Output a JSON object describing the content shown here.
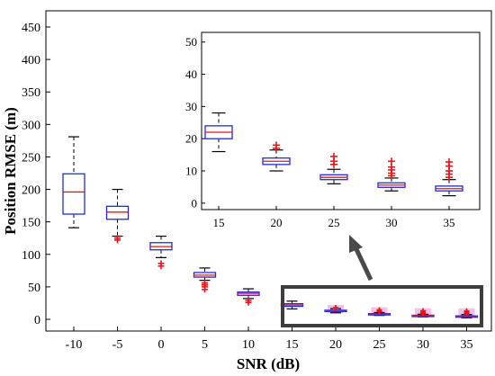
{
  "chart_data": {
    "type": "box",
    "xlabel": "SNR (dB)",
    "ylabel": "Position RMSE (m)",
    "categories": [
      "-10",
      "-5",
      "0",
      "5",
      "10",
      "15",
      "20",
      "25",
      "30",
      "35"
    ],
    "ylim": [
      0,
      450
    ],
    "yticks": [
      0,
      50,
      100,
      150,
      200,
      250,
      300,
      350,
      400,
      450
    ],
    "grid": false,
    "boxes": [
      {
        "snr": "-10",
        "whisker_low": 141,
        "q1": 162,
        "median": 196,
        "q3": 224,
        "whisker_high": 281,
        "outliers": []
      },
      {
        "snr": "-5",
        "whisker_low": 128,
        "q1": 154,
        "median": 165,
        "q3": 174,
        "whisker_high": 200,
        "outliers": [
          122,
          125
        ]
      },
      {
        "snr": "0",
        "whisker_low": 95,
        "q1": 107,
        "median": 112,
        "q3": 118,
        "whisker_high": 128,
        "outliers": [
          82,
          86
        ]
      },
      {
        "snr": "5",
        "whisker_low": 60,
        "q1": 65,
        "median": 68,
        "q3": 72,
        "whisker_high": 79,
        "outliers": [
          46,
          50,
          53,
          56
        ]
      },
      {
        "snr": "10",
        "whisker_low": 32,
        "q1": 37,
        "median": 40,
        "q3": 42,
        "whisker_high": 47,
        "outliers": [
          26,
          29
        ]
      },
      {
        "snr": "15",
        "whisker_low": 16,
        "q1": 20,
        "median": 22,
        "q3": 24,
        "whisker_high": 28,
        "outliers": []
      },
      {
        "snr": "20",
        "whisker_low": 10,
        "q1": 12,
        "median": 13,
        "q3": 14,
        "whisker_high": 16.5,
        "outliers": [
          17,
          18
        ]
      },
      {
        "snr": "25",
        "whisker_low": 6,
        "q1": 7.3,
        "median": 8,
        "q3": 8.8,
        "whisker_high": 10.5,
        "outliers": [
          12,
          13,
          14.5
        ]
      },
      {
        "snr": "30",
        "whisker_low": 3.8,
        "q1": 4.9,
        "median": 5.6,
        "q3": 6.3,
        "whisker_high": 7.8,
        "outliers": [
          8.5,
          9.3,
          10.3,
          11.2,
          13
        ]
      },
      {
        "snr": "35",
        "whisker_low": 2.3,
        "q1": 3.8,
        "median": 4.5,
        "q3": 5.3,
        "whisker_high": 7.3,
        "outliers": [
          8,
          9,
          10,
          11.5,
          12.8
        ]
      }
    ],
    "inset": {
      "categories": [
        "15",
        "20",
        "25",
        "30",
        "35"
      ],
      "ylim": [
        -2,
        53
      ],
      "yticks": [
        0,
        10,
        20,
        30,
        40,
        50
      ]
    },
    "colors": {
      "box": "#1f2bd6",
      "median": "#e8141c",
      "whisker": "#000000",
      "outlier": "#e8141c",
      "zoom_frame": "#3d3d3d",
      "arrow": "#4a4a4a"
    }
  }
}
